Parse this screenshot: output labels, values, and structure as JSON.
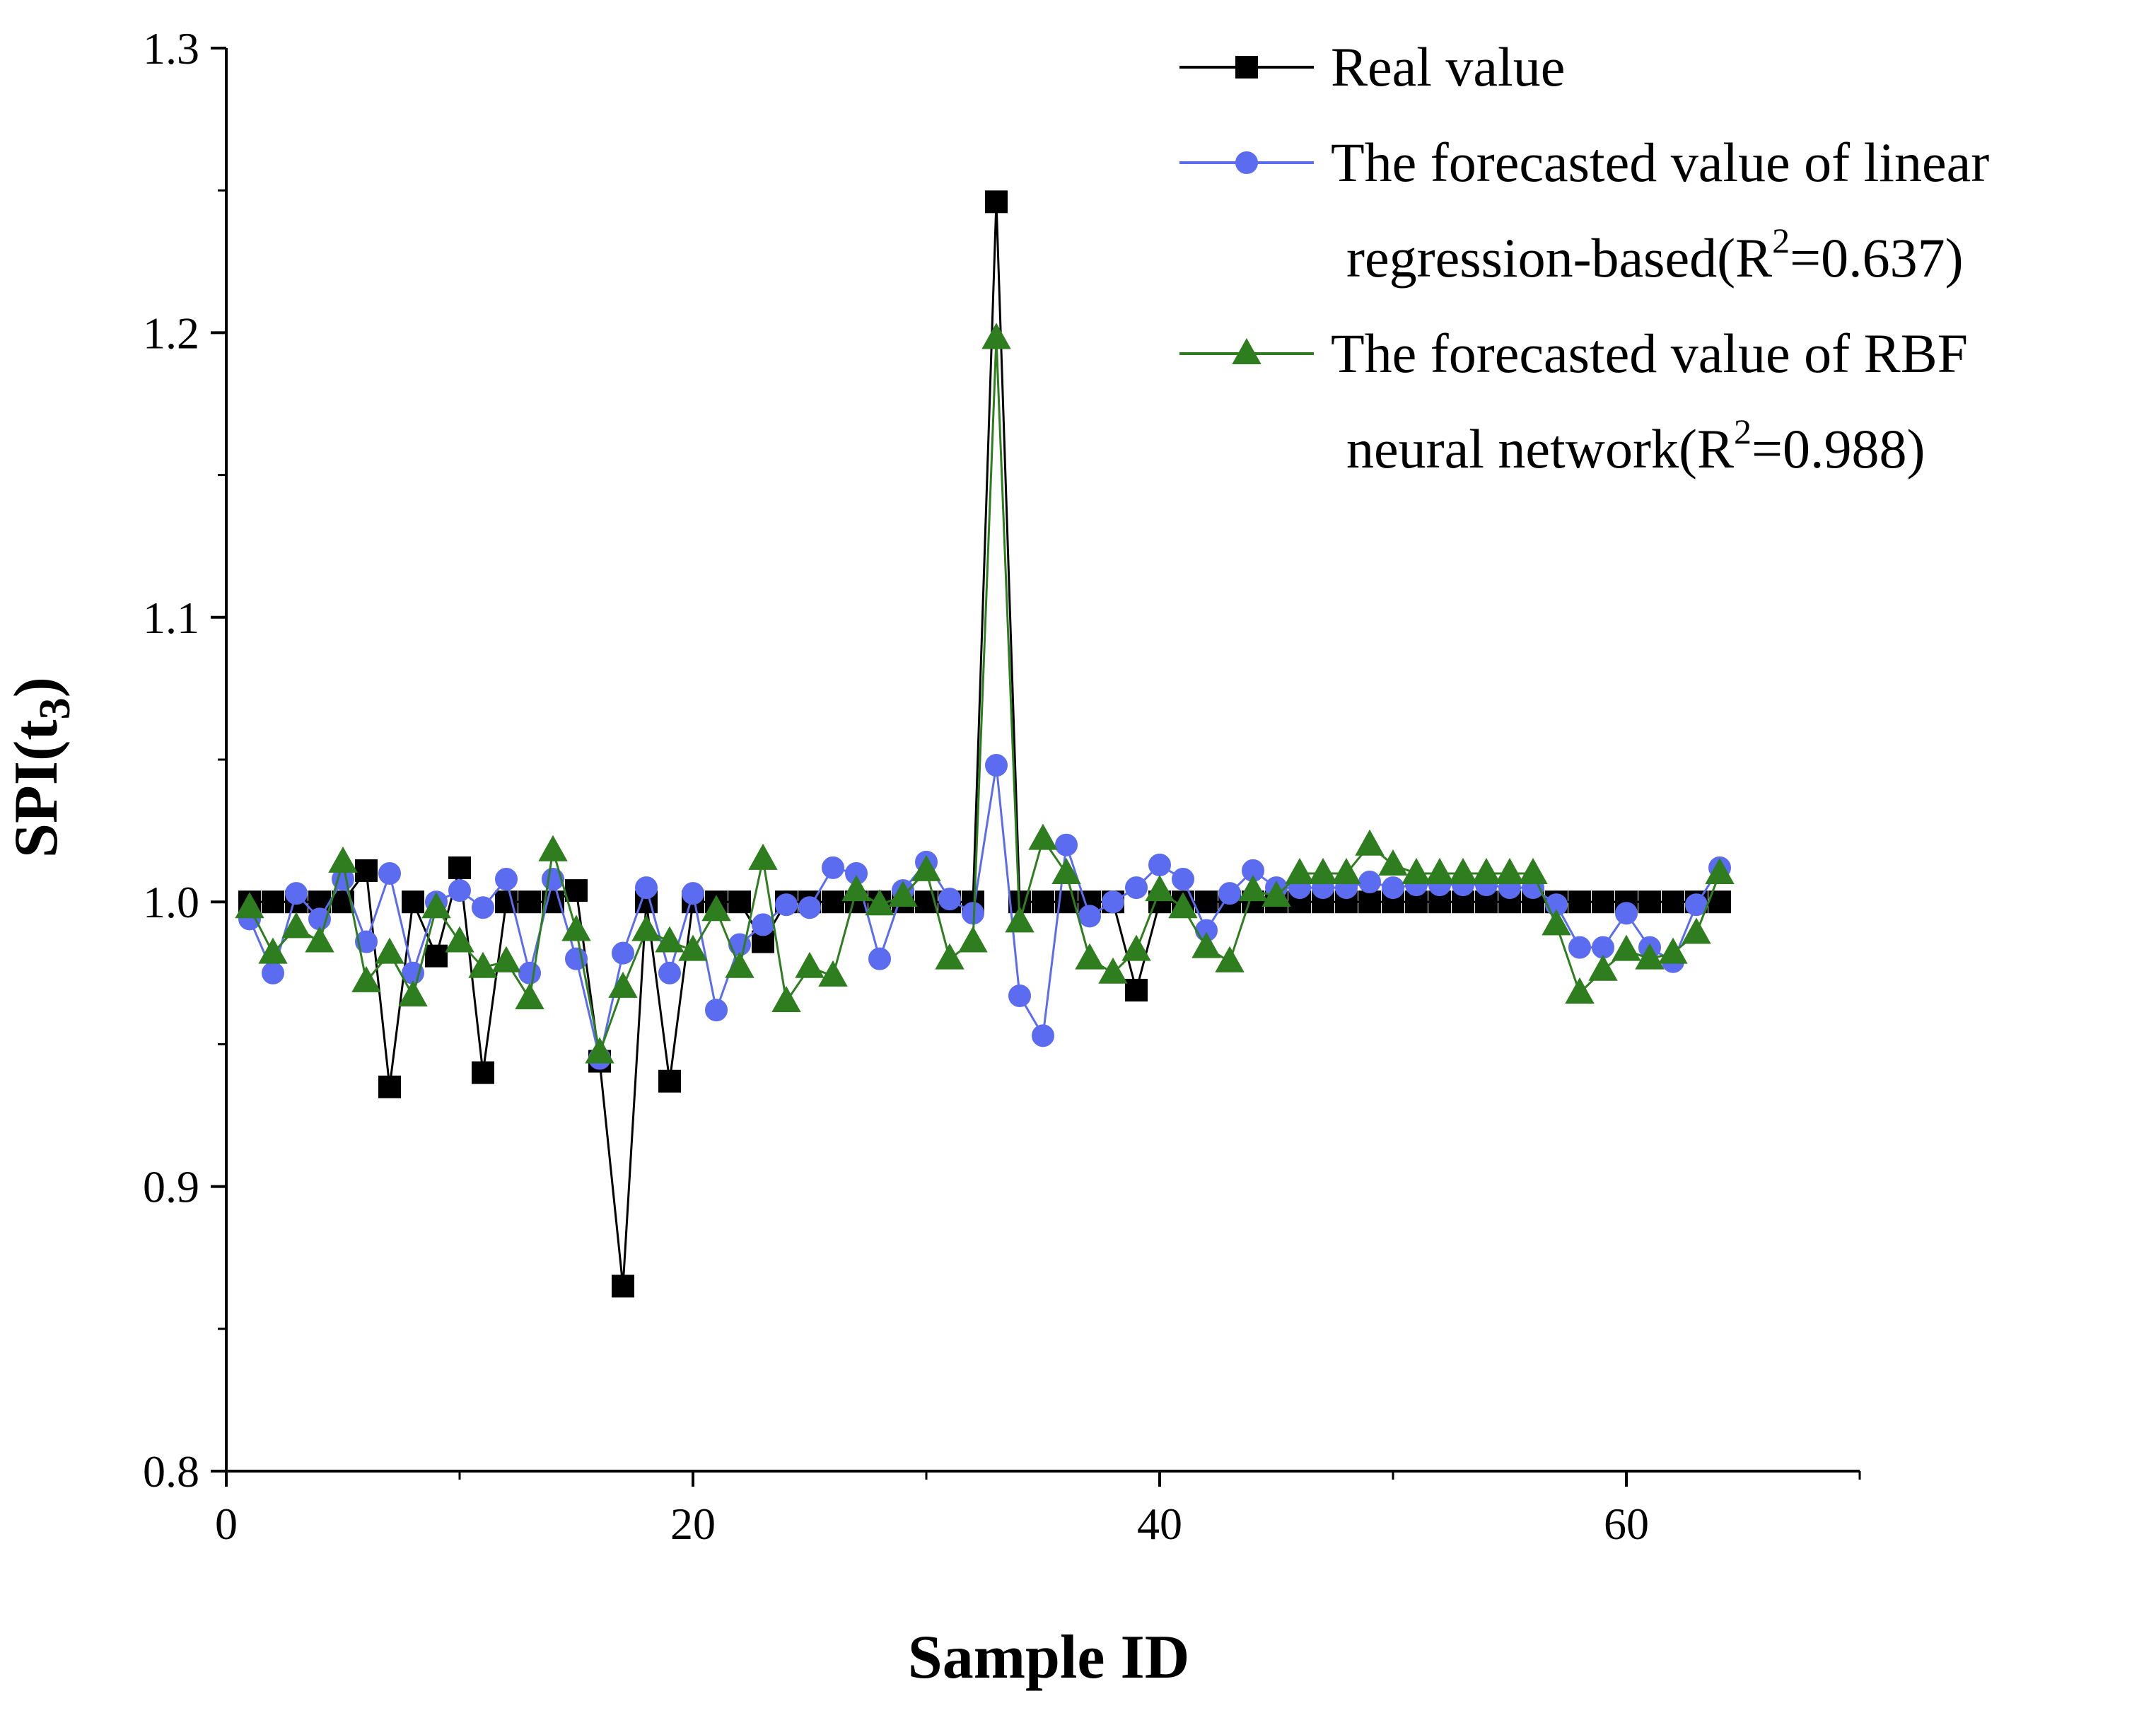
{
  "chart_data": {
    "type": "line",
    "title": "",
    "xlabel": "Sample ID",
    "ylabel": {
      "main": "SPI(t",
      "sub": "3",
      "close": ")"
    },
    "xlim": [
      0,
      70
    ],
    "ylim": [
      0.8,
      1.3
    ],
    "x_ticks": [
      0,
      20,
      40,
      60
    ],
    "x_tick_labels": [
      "0",
      "20",
      "40",
      "60"
    ],
    "y_ticks": [
      0.8,
      0.9,
      1.0,
      1.1,
      1.2,
      1.3
    ],
    "y_tick_labels": [
      "0.8",
      "0.9",
      "1.0",
      "1.1",
      "1.2",
      "1.3"
    ],
    "grid": false,
    "legend_position": "top-right",
    "x": [
      1,
      2,
      3,
      4,
      5,
      6,
      7,
      8,
      9,
      10,
      11,
      12,
      13,
      14,
      15,
      16,
      17,
      18,
      19,
      20,
      21,
      22,
      23,
      24,
      25,
      26,
      27,
      28,
      29,
      30,
      31,
      32,
      33,
      34,
      35,
      36,
      37,
      38,
      39,
      40,
      41,
      42,
      43,
      44,
      45,
      46,
      47,
      48,
      49,
      50,
      51,
      52,
      53,
      54,
      55,
      56,
      57,
      58,
      59,
      60,
      61,
      62,
      63,
      64
    ],
    "series": [
      {
        "name": "Real value",
        "color": "#000000",
        "marker": "square",
        "values": [
          1.0,
          1.0,
          1.0,
          1.0,
          1.0,
          1.011,
          0.935,
          1.0,
          0.981,
          1.012,
          0.94,
          1.0,
          1.0,
          1.0,
          1.004,
          0.944,
          0.865,
          1.0,
          0.937,
          1.0,
          1.0,
          1.0,
          0.986,
          1.0,
          1.0,
          1.0,
          1.0,
          1.0,
          1.0,
          1.0,
          1.0,
          1.0,
          1.246,
          1.0,
          1.0,
          1.0,
          1.0,
          1.0,
          0.969,
          1.0,
          1.0,
          1.0,
          1.0,
          1.0,
          1.0,
          1.0,
          1.0,
          1.0,
          1.0,
          1.0,
          1.0,
          1.0,
          1.0,
          1.0,
          1.0,
          1.0,
          1.0,
          1.0,
          1.0,
          1.0,
          1.0,
          1.0,
          1.0,
          1.0
        ]
      },
      {
        "name": "The forecasted value of linear regression-based(R2=0.637)",
        "color": "#5B6CF0",
        "marker": "circle",
        "values": [
          0.994,
          0.975,
          1.003,
          0.994,
          1.008,
          0.986,
          1.01,
          0.975,
          1.0,
          1.004,
          0.998,
          1.008,
          0.975,
          1.008,
          0.98,
          0.945,
          0.982,
          1.005,
          0.975,
          1.003,
          0.962,
          0.985,
          0.992,
          0.999,
          0.998,
          1.012,
          1.01,
          0.98,
          1.004,
          1.014,
          1.001,
          0.996,
          1.048,
          0.967,
          0.953,
          1.02,
          0.995,
          1.0,
          1.005,
          1.013,
          1.008,
          0.99,
          1.003,
          1.011,
          1.005,
          1.005,
          1.005,
          1.005,
          1.007,
          1.005,
          1.006,
          1.006,
          1.006,
          1.006,
          1.005,
          1.005,
          0.999,
          0.984,
          0.984,
          0.996,
          0.984,
          0.979,
          0.999,
          1.012
        ]
      },
      {
        "name": "The forecasted value of RBF neural network(R2=0.988)",
        "color": "#2E7D1E",
        "marker": "triangle",
        "values": [
          0.998,
          0.982,
          0.991,
          0.986,
          1.014,
          0.972,
          0.982,
          0.967,
          0.998,
          0.986,
          0.977,
          0.979,
          0.966,
          1.018,
          0.99,
          0.947,
          0.97,
          0.99,
          0.986,
          0.983,
          0.997,
          0.977,
          1.015,
          0.965,
          0.977,
          0.974,
          1.004,
          0.999,
          1.002,
          1.011,
          0.98,
          0.986,
          1.198,
          0.993,
          1.022,
          1.01,
          0.98,
          0.975,
          0.983,
          1.004,
          0.998,
          0.984,
          0.979,
          1.004,
          1.002,
          1.01,
          1.01,
          1.01,
          1.02,
          1.013,
          1.01,
          1.01,
          1.01,
          1.01,
          1.01,
          1.01,
          0.992,
          0.968,
          0.976,
          0.983,
          0.98,
          0.982,
          0.989,
          1.01
        ]
      }
    ],
    "legend": [
      {
        "lines": [
          {
            "text": "Real value"
          }
        ]
      },
      {
        "lines": [
          {
            "text": "The forecasted value of linear"
          },
          {
            "text": "regression-based(R",
            "sup": "2",
            "after": "=0.637)"
          }
        ]
      },
      {
        "lines": [
          {
            "text": "The forecasted value of RBF"
          },
          {
            "text": "neural network(R",
            "sup": "2",
            "after": "=0.988)"
          }
        ]
      }
    ]
  }
}
